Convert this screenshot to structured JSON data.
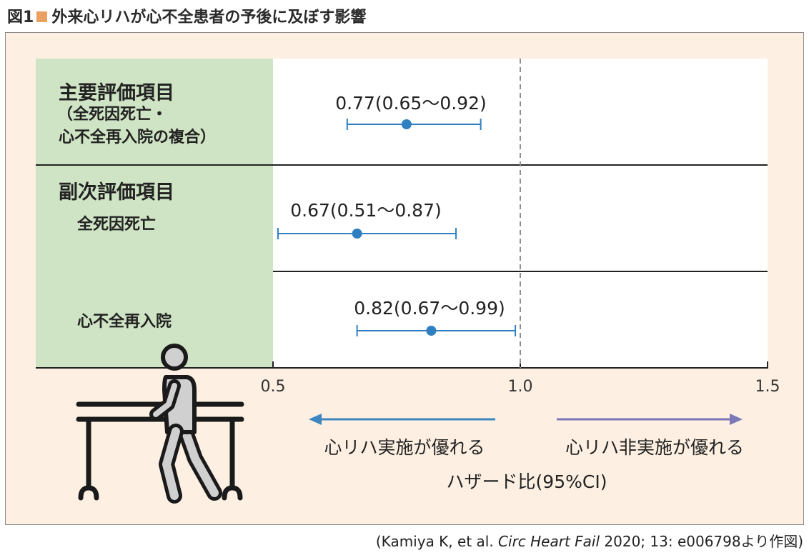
{
  "figure": {
    "number": "図1",
    "title": "外来心リハが心不全患者の予後に及ぼす影響"
  },
  "rows": {
    "primary_heading": "主要評価項目",
    "primary_sub1": "（全死因死亡・",
    "primary_sub2": "心不全再入院の複合）",
    "secondary_heading": "副次評価項目",
    "secondary_item1": "全死因死亡",
    "secondary_item2": "心不全再入院"
  },
  "chart_data": {
    "type": "forest",
    "x_ticks": [
      "0.5",
      "1.0",
      "1.5"
    ],
    "xlim": [
      0.5,
      1.5
    ],
    "reference_line": 1.0,
    "xlabel": "ハザード比(95%CI)",
    "points": [
      {
        "hr": 0.77,
        "lo": 0.65,
        "hi": 0.92,
        "label": "0.77(0.65～0.92)"
      },
      {
        "hr": 0.67,
        "lo": 0.51,
        "hi": 0.87,
        "label": "0.67(0.51～0.87)"
      },
      {
        "hr": 0.82,
        "lo": 0.67,
        "hi": 0.99,
        "label": "0.82(0.67～0.99)"
      }
    ],
    "favors_left": "心リハ実施が優れる",
    "favors_right": "心リハ非実施が優れる",
    "colors": {
      "point": "#2f7fc1",
      "left_arrow": "#3d86c0",
      "right_arrow": "#7b78b8",
      "panel": "#fdf0e2",
      "label_bg": "#cfe4c4"
    }
  },
  "source_note": {
    "open": "(Kamiya K, et al. ",
    "journal": "Circ Heart Fail",
    "rest": " 2020; 13: e006798より作図)"
  }
}
